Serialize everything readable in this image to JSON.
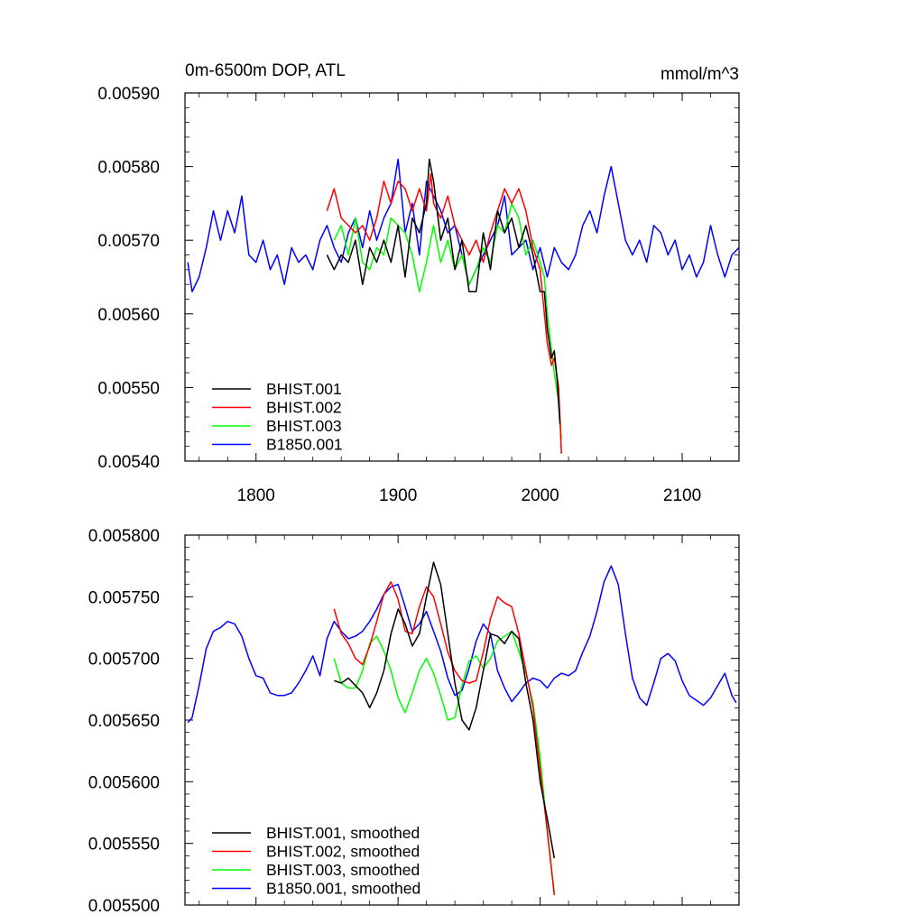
{
  "chart_data": [
    {
      "type": "line",
      "title_left": "0m-6500m DOP, ATL",
      "title_right": "mmol/m^3",
      "xlim": [
        1750,
        2140
      ],
      "ylim": [
        0.0054,
        0.0059
      ],
      "xticks": [
        1800,
        1900,
        2000,
        2100
      ],
      "xtick_labels": [
        "1800",
        "1900",
        "2000",
        "2100"
      ],
      "yticks": [
        0.0054,
        0.0055,
        0.0056,
        0.0057,
        0.0058,
        0.0059
      ],
      "ytick_labels": [
        "0.00540",
        "0.00550",
        "0.00560",
        "0.00570",
        "0.00580",
        "0.00590"
      ],
      "legend_position": "bottom-left",
      "series": [
        {
          "name": "BHIST.001",
          "color": "#000000",
          "x": [
            1850,
            1855,
            1860,
            1865,
            1870,
            1875,
            1880,
            1885,
            1890,
            1895,
            1900,
            1905,
            1910,
            1915,
            1920,
            1922,
            1925,
            1930,
            1935,
            1940,
            1945,
            1950,
            1955,
            1960,
            1965,
            1970,
            1975,
            1980,
            1985,
            1990,
            1995,
            2000,
            2003,
            2005,
            2008,
            2010,
            2012,
            2014
          ],
          "y": [
            0.00568,
            0.00566,
            0.00568,
            0.00567,
            0.0057,
            0.00564,
            0.00569,
            0.00567,
            0.0057,
            0.00567,
            0.00572,
            0.00565,
            0.00573,
            0.00571,
            0.00575,
            0.00581,
            0.00578,
            0.0057,
            0.00573,
            0.00566,
            0.0057,
            0.00563,
            0.00563,
            0.00571,
            0.00566,
            0.00574,
            0.00571,
            0.00573,
            0.00569,
            0.00572,
            0.00568,
            0.00563,
            0.00563,
            0.00558,
            0.00554,
            0.00555,
            0.00551,
            0.00545
          ]
        },
        {
          "name": "BHIST.002",
          "color": "#ff0000",
          "x": [
            1850,
            1855,
            1860,
            1865,
            1870,
            1875,
            1880,
            1885,
            1890,
            1895,
            1900,
            1905,
            1910,
            1915,
            1920,
            1923,
            1925,
            1930,
            1935,
            1940,
            1945,
            1950,
            1955,
            1960,
            1965,
            1970,
            1975,
            1980,
            1985,
            1990,
            1995,
            2000,
            2003,
            2005,
            2008,
            2010,
            2013,
            2015
          ],
          "y": [
            0.00574,
            0.00577,
            0.00573,
            0.00572,
            0.00571,
            0.00572,
            0.0057,
            0.00573,
            0.00578,
            0.00575,
            0.00578,
            0.00577,
            0.00574,
            0.00577,
            0.00574,
            0.00579,
            0.00575,
            0.00573,
            0.00576,
            0.00572,
            0.0057,
            0.00568,
            0.0057,
            0.00567,
            0.00571,
            0.00574,
            0.00577,
            0.00575,
            0.00577,
            0.00574,
            0.00569,
            0.00566,
            0.0056,
            0.00556,
            0.00553,
            0.00554,
            0.0055,
            0.00541
          ]
        },
        {
          "name": "BHIST.003",
          "color": "#00ff00",
          "x": [
            1855,
            1860,
            1865,
            1870,
            1875,
            1880,
            1885,
            1890,
            1895,
            1900,
            1905,
            1910,
            1915,
            1920,
            1925,
            1930,
            1935,
            1940,
            1945,
            1950,
            1955,
            1960,
            1965,
            1970,
            1975,
            1980,
            1985,
            1990,
            1995,
            2000,
            2003,
            2005,
            2008,
            2010,
            2013,
            2015
          ],
          "y": [
            0.0057,
            0.00572,
            0.00568,
            0.00573,
            0.00567,
            0.00566,
            0.00569,
            0.00568,
            0.00573,
            0.00572,
            0.00571,
            0.00568,
            0.00563,
            0.00567,
            0.00572,
            0.00567,
            0.0057,
            0.00566,
            0.00568,
            0.00564,
            0.00566,
            0.00569,
            0.00567,
            0.00572,
            0.00571,
            0.00575,
            0.00573,
            0.00568,
            0.0057,
            0.00567,
            0.00565,
            0.0056,
            0.00555,
            0.00552,
            0.00548,
            0.00543
          ]
        },
        {
          "name": "B1850.001",
          "color": "#0000ff",
          "x": [
            1752,
            1755,
            1760,
            1765,
            1770,
            1775,
            1780,
            1785,
            1790,
            1795,
            1800,
            1805,
            1810,
            1815,
            1820,
            1825,
            1830,
            1835,
            1840,
            1845,
            1850,
            1855,
            1860,
            1865,
            1870,
            1875,
            1880,
            1885,
            1890,
            1895,
            1900,
            1905,
            1910,
            1915,
            1920,
            1925,
            1930,
            1935,
            1940,
            1945,
            1950,
            1955,
            1960,
            1965,
            1970,
            1975,
            1980,
            1985,
            1990,
            1995,
            2000,
            2005,
            2010,
            2015,
            2020,
            2025,
            2030,
            2035,
            2040,
            2045,
            2050,
            2055,
            2060,
            2065,
            2070,
            2075,
            2080,
            2085,
            2090,
            2095,
            2100,
            2105,
            2110,
            2115,
            2120,
            2125,
            2130,
            2135,
            2140
          ],
          "y": [
            0.00567,
            0.00563,
            0.00565,
            0.00569,
            0.00574,
            0.0057,
            0.00574,
            0.00571,
            0.00576,
            0.00568,
            0.00567,
            0.0057,
            0.00566,
            0.00568,
            0.00564,
            0.00569,
            0.00567,
            0.00568,
            0.00566,
            0.0057,
            0.00572,
            0.00569,
            0.00567,
            0.00571,
            0.00573,
            0.00569,
            0.00574,
            0.0057,
            0.00573,
            0.00575,
            0.00581,
            0.00571,
            0.00575,
            0.00568,
            0.00578,
            0.00576,
            0.00574,
            0.00571,
            0.00572,
            0.00568,
            0.00564,
            0.00566,
            0.00568,
            0.0057,
            0.00572,
            0.00576,
            0.00568,
            0.00569,
            0.0057,
            0.00566,
            0.00569,
            0.00565,
            0.00569,
            0.00567,
            0.00566,
            0.00568,
            0.00572,
            0.00574,
            0.00571,
            0.00576,
            0.0058,
            0.00575,
            0.0057,
            0.00568,
            0.0057,
            0.00567,
            0.00572,
            0.00571,
            0.00568,
            0.0057,
            0.00566,
            0.00568,
            0.00565,
            0.00567,
            0.00572,
            0.00568,
            0.00565,
            0.00568,
            0.00569
          ]
        }
      ]
    },
    {
      "type": "line",
      "xlim": [
        1750,
        2140
      ],
      "ylim": [
        0.0055,
        0.0058
      ],
      "xticks": [
        1800,
        1900,
        2000,
        2100
      ],
      "yticks": [
        0.0055,
        0.00555,
        0.0056,
        0.00565,
        0.0057,
        0.00575,
        0.0058
      ],
      "ytick_labels": [
        "0.005500",
        "0.005550",
        "0.005600",
        "0.005650",
        "0.005700",
        "0.005750",
        "0.005800"
      ],
      "legend_position": "bottom-left",
      "series": [
        {
          "name": "BHIST.001, smoothed",
          "color": "#000000",
          "x": [
            1855,
            1860,
            1865,
            1870,
            1875,
            1880,
            1885,
            1890,
            1895,
            1900,
            1905,
            1910,
            1915,
            1920,
            1925,
            1930,
            1935,
            1940,
            1945,
            1950,
            1955,
            1960,
            1965,
            1970,
            1975,
            1980,
            1985,
            1990,
            1995,
            2000,
            2005,
            2010
          ],
          "y": [
            0.005682,
            0.00568,
            0.005684,
            0.005678,
            0.005672,
            0.00566,
            0.005672,
            0.00569,
            0.00572,
            0.00574,
            0.005728,
            0.00571,
            0.00572,
            0.00575,
            0.005778,
            0.00576,
            0.00572,
            0.00568,
            0.00565,
            0.005642,
            0.00566,
            0.00569,
            0.00572,
            0.005718,
            0.005712,
            0.005722,
            0.005716,
            0.00568,
            0.00565,
            0.0056,
            0.00557,
            0.005538
          ]
        },
        {
          "name": "BHIST.002, smoothed",
          "color": "#ff0000",
          "x": [
            1855,
            1860,
            1865,
            1870,
            1875,
            1880,
            1885,
            1890,
            1895,
            1900,
            1905,
            1910,
            1915,
            1920,
            1925,
            1930,
            1935,
            1940,
            1945,
            1950,
            1955,
            1960,
            1965,
            1970,
            1975,
            1980,
            1985,
            1990,
            1995,
            2000,
            2005,
            2010
          ],
          "y": [
            0.00574,
            0.00572,
            0.005712,
            0.0057,
            0.005695,
            0.00571,
            0.00573,
            0.005752,
            0.005762,
            0.005748,
            0.005722,
            0.00572,
            0.005742,
            0.005758,
            0.00575,
            0.005728,
            0.005705,
            0.00569,
            0.005682,
            0.00568,
            0.005682,
            0.005705,
            0.005732,
            0.00575,
            0.005745,
            0.005742,
            0.00572,
            0.00569,
            0.00566,
            0.00561,
            0.00556,
            0.005508
          ]
        },
        {
          "name": "BHIST.003, smoothed",
          "color": "#00ff00",
          "x": [
            1855,
            1860,
            1865,
            1870,
            1875,
            1880,
            1885,
            1890,
            1895,
            1900,
            1905,
            1910,
            1915,
            1920,
            1925,
            1930,
            1935,
            1940,
            1945,
            1950,
            1955,
            1960,
            1965,
            1970,
            1975,
            1980,
            1985,
            1990,
            1995,
            2000,
            2005,
            2010
          ],
          "y": [
            0.0057,
            0.00568,
            0.005676,
            0.005676,
            0.00569,
            0.005712,
            0.005718,
            0.005706,
            0.00569,
            0.005668,
            0.005656,
            0.005672,
            0.00569,
            0.0057,
            0.005688,
            0.00567,
            0.00565,
            0.005652,
            0.005678,
            0.005698,
            0.005702,
            0.005692,
            0.0057,
            0.005714,
            0.005718,
            0.005722,
            0.005706,
            0.005688,
            0.005664,
            0.00562,
            0.00556,
            0.00551
          ]
        },
        {
          "name": "B1850.001, smoothed",
          "color": "#0000ff",
          "x": [
            1752,
            1755,
            1760,
            1765,
            1770,
            1775,
            1780,
            1785,
            1790,
            1795,
            1800,
            1805,
            1810,
            1815,
            1820,
            1825,
            1830,
            1835,
            1840,
            1845,
            1850,
            1855,
            1860,
            1865,
            1870,
            1875,
            1880,
            1885,
            1890,
            1895,
            1900,
            1905,
            1910,
            1915,
            1920,
            1925,
            1930,
            1935,
            1940,
            1945,
            1950,
            1955,
            1960,
            1965,
            1970,
            1975,
            1980,
            1985,
            1990,
            1995,
            2000,
            2005,
            2010,
            2015,
            2020,
            2025,
            2030,
            2035,
            2040,
            2045,
            2050,
            2055,
            2060,
            2065,
            2070,
            2075,
            2080,
            2085,
            2090,
            2095,
            2100,
            2105,
            2110,
            2115,
            2120,
            2125,
            2130,
            2135,
            2138
          ],
          "y": [
            0.005648,
            0.005652,
            0.005678,
            0.005708,
            0.005722,
            0.005725,
            0.00573,
            0.005728,
            0.005718,
            0.0057,
            0.005686,
            0.005684,
            0.005672,
            0.00567,
            0.00567,
            0.005672,
            0.00568,
            0.00569,
            0.005702,
            0.005686,
            0.005716,
            0.00573,
            0.005722,
            0.005716,
            0.005718,
            0.005722,
            0.00573,
            0.00574,
            0.005752,
            0.005758,
            0.00576,
            0.005742,
            0.005722,
            0.005728,
            0.005738,
            0.005722,
            0.005706,
            0.005684,
            0.00567,
            0.005674,
            0.005692,
            0.005714,
            0.005728,
            0.00572,
            0.00569,
            0.005676,
            0.005665,
            0.005672,
            0.00568,
            0.005684,
            0.005682,
            0.005676,
            0.005684,
            0.005688,
            0.005686,
            0.00569,
            0.005705,
            0.005718,
            0.005738,
            0.005762,
            0.005775,
            0.00576,
            0.00572,
            0.005684,
            0.005668,
            0.005662,
            0.00568,
            0.0057,
            0.005704,
            0.005698,
            0.005682,
            0.00567,
            0.005666,
            0.005662,
            0.005668,
            0.005678,
            0.005688,
            0.00567,
            0.005664
          ]
        }
      ]
    }
  ]
}
